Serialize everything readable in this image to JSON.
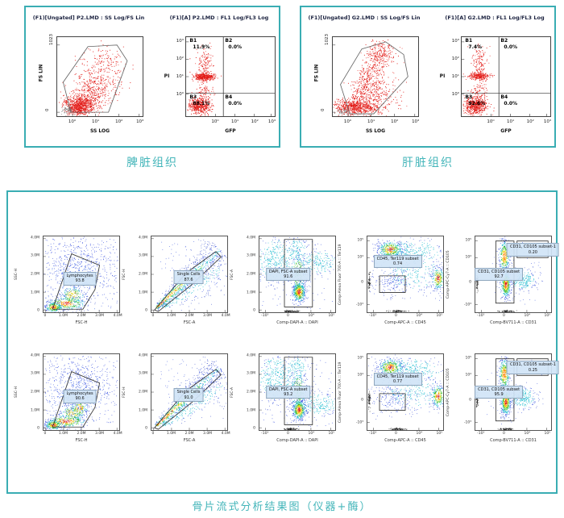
{
  "colors": {
    "accent": "#3aadb3",
    "caption": "#45b6ba"
  },
  "top_panels": [
    {
      "caption": "脾脏组织",
      "scatter_plot": {
        "title": "(F1)[Ungated] P2.LMD : SS Log/FS Lin",
        "xlabel": "SS LOG",
        "ylabel": "FS LIN",
        "xticks": [
          "10⁰",
          "10¹",
          "10²",
          "10³"
        ],
        "yticks": [
          "1023",
          "0"
        ]
      },
      "quadrant_plot": {
        "title": "(F1)[A] P2.LMD : FL1 Log/FL3 Log",
        "xlabel": "GFP",
        "ylabel": "PI",
        "xticks": [
          "10⁰",
          "10¹",
          "10²",
          "10³"
        ],
        "yticks": [
          "10³",
          "10²",
          "10¹",
          "10⁰"
        ],
        "quadrants": [
          {
            "name": "B1",
            "value": "11.9%"
          },
          {
            "name": "B2",
            "value": "0.0%"
          },
          {
            "name": "B3",
            "value": "88.1%"
          },
          {
            "name": "B4",
            "value": "0.0%"
          }
        ]
      }
    },
    {
      "caption": "肝脏组织",
      "scatter_plot": {
        "title": "(F1)[Ungated] G2.LMD : SS Log/FS Lin",
        "xlabel": "SS LOG",
        "ylabel": "FS LIN",
        "xticks": [
          "10⁰",
          "10¹",
          "10²",
          "10³"
        ],
        "yticks": [
          "1023",
          "0"
        ]
      },
      "quadrant_plot": {
        "title": "(F1)[A] G2.LMD : FL1 Log/FL3 Log",
        "xlabel": "GFP",
        "ylabel": "PI",
        "xticks": [
          "10⁰",
          "10¹",
          "10²",
          "10³"
        ],
        "yticks": [
          "10³",
          "10²",
          "10¹",
          "10⁰"
        ],
        "quadrants": [
          {
            "name": "B1",
            "value": "7.4%"
          },
          {
            "name": "B2",
            "value": "0.0%"
          },
          {
            "name": "B3",
            "value": "92.6%"
          },
          {
            "name": "B4",
            "value": "0.0%"
          }
        ]
      }
    }
  ],
  "bottom_panel": {
    "caption": "骨片流式分析结果图（仪器+酶）",
    "columns": [
      {
        "xlabel": "FSC-H",
        "ylabel": "SSC-H",
        "xticks": [
          "0",
          "1.0M",
          "2.0M",
          "3.0M",
          "4.0M"
        ],
        "yticks": [
          "4.0M",
          "3.0M",
          "2.0M",
          "1.0M",
          "0"
        ]
      },
      {
        "xlabel": "FSC-A",
        "ylabel": "FSC-H",
        "xticks": [
          "0",
          "1.0M",
          "2.0M",
          "3.0M",
          "4.0M"
        ],
        "yticks": [
          "4.0M",
          "3.0M",
          "2.0M",
          "1.0M",
          "0"
        ]
      },
      {
        "xlabel": "Comp-DAPI-A :: DAPI",
        "ylabel": "FSC-A",
        "xticks": [
          "-10³",
          "0",
          "10⁴",
          "10⁵"
        ],
        "yticks": [
          "4.0M",
          "3.0M",
          "2.0M",
          "1.0M",
          "0"
        ]
      },
      {
        "xlabel": "Comp-APC-A :: CD45",
        "ylabel": "Comp-Alexa Fluor 700-A :: Ter119",
        "xticks": [
          "-10³",
          "0",
          "10⁴",
          "10⁵"
        ],
        "yticks": [
          "10⁵",
          "10⁴",
          "0",
          "-10³"
        ]
      },
      {
        "xlabel": "Comp-BV711-A :: CD31",
        "ylabel": "Comp-APC-Cy7-A :: CD105",
        "xticks": [
          "-10³",
          "0",
          "10⁴",
          "10⁵"
        ],
        "yticks": [
          "10⁵",
          "10⁴",
          "0",
          "-10³"
        ]
      }
    ],
    "rows": [
      {
        "plots": [
          {
            "gates": [
              {
                "name": "Lymphocytes",
                "value": "93.8"
              }
            ]
          },
          {
            "gates": [
              {
                "name": "Single Cells",
                "value": "87.6"
              }
            ]
          },
          {
            "gates": [
              {
                "name": "DAPI, FSC-A subset",
                "value": "91.6"
              }
            ]
          },
          {
            "gates": [
              {
                "name": "CD45, Ter119 subset",
                "value": "0.74"
              }
            ]
          },
          {
            "gates": [
              {
                "name": "CD31, CD105 subset",
                "value": "92.7"
              },
              {
                "name": "CD31, CD105 subset-1",
                "value": "0.20"
              }
            ]
          }
        ]
      },
      {
        "plots": [
          {
            "gates": [
              {
                "name": "Lymphocytes",
                "value": "90.6"
              }
            ]
          },
          {
            "gates": [
              {
                "name": "Single Cells",
                "value": "91.0"
              }
            ]
          },
          {
            "gates": [
              {
                "name": "DAPI, FSC-A subset",
                "value": "93.2"
              }
            ]
          },
          {
            "gates": [
              {
                "name": "CD45, Ter119 subset",
                "value": "0.77"
              }
            ]
          },
          {
            "gates": [
              {
                "name": "CD31, CD105 subset",
                "value": "95.9"
              },
              {
                "name": "CD31, CD105 subset-1",
                "value": "0.25"
              }
            ]
          }
        ]
      }
    ]
  },
  "chart_data": [
    {
      "panel": "脾脏组织",
      "type": "scatter",
      "title": "(F1)[Ungated] P2.LMD : SS Log/FS Lin",
      "xlabel": "SS LOG",
      "ylabel": "FS LIN",
      "xscale": "log10 10⁰–10³",
      "yrange": [
        0,
        1023
      ],
      "gate": "polygon enclosing main red population"
    },
    {
      "panel": "脾脏组织",
      "type": "scatter",
      "title": "(F1)[A] P2.LMD : FL1 Log/FL3 Log",
      "xlabel": "GFP",
      "ylabel": "PI",
      "xscale": "log10 10⁰–10³",
      "yscale": "log10 10⁰–10³",
      "quadrants": {
        "B1": 11.9,
        "B2": 0.0,
        "B3": 88.1,
        "B4": 0.0
      }
    },
    {
      "panel": "肝脏组织",
      "type": "scatter",
      "title": "(F1)[Ungated] G2.LMD : SS Log/FS Lin",
      "xlabel": "SS LOG",
      "ylabel": "FS LIN",
      "xscale": "log10 10⁰–10³",
      "yrange": [
        0,
        1023
      ],
      "gate": "polygon enclosing main red population"
    },
    {
      "panel": "肝脏组织",
      "type": "scatter",
      "title": "(F1)[A] G2.LMD : FL1 Log/FL3 Log",
      "xlabel": "GFP",
      "ylabel": "PI",
      "xscale": "log10 10⁰–10³",
      "yscale": "log10 10⁰–10³",
      "quadrants": {
        "B1": 7.4,
        "B2": 0.0,
        "B3": 92.6,
        "B4": 0.0
      }
    },
    {
      "panel": "骨片流式分析结果图（仪器+酶）",
      "row": 1,
      "col": 1,
      "type": "density-scatter",
      "xlabel": "FSC-H",
      "ylabel": "SSC-H",
      "axis_range": "0–4.0M",
      "gates": {
        "Lymphocytes": 93.8
      }
    },
    {
      "panel": "骨片流式分析结果图（仪器+酶）",
      "row": 1,
      "col": 2,
      "type": "density-scatter",
      "xlabel": "FSC-A",
      "ylabel": "FSC-H",
      "axis_range": "0–4.0M",
      "gates": {
        "Single Cells": 87.6
      }
    },
    {
      "panel": "骨片流式分析结果图（仪器+酶）",
      "row": 1,
      "col": 3,
      "type": "density-scatter",
      "xlabel": "Comp-DAPI-A :: DAPI",
      "ylabel": "FSC-A",
      "gates": {
        "DAPI, FSC-A subset": 91.6
      }
    },
    {
      "panel": "骨片流式分析结果图（仪器+酶）",
      "row": 1,
      "col": 4,
      "type": "density-scatter",
      "xlabel": "Comp-APC-A :: CD45",
      "ylabel": "Comp-Alexa Fluor 700-A :: Ter119",
      "gates": {
        "CD45, Ter119 subset": 0.74
      }
    },
    {
      "panel": "骨片流式分析结果图（仪器+酶）",
      "row": 1,
      "col": 5,
      "type": "density-scatter",
      "xlabel": "Comp-BV711-A :: CD31",
      "ylabel": "Comp-APC-Cy7-A :: CD105",
      "gates": {
        "CD31, CD105 subset": 92.7,
        "CD31, CD105 subset-1": 0.2
      }
    },
    {
      "panel": "骨片流式分析结果图（仪器+酶）",
      "row": 2,
      "col": 1,
      "type": "density-scatter",
      "xlabel": "FSC-H",
      "ylabel": "SSC-H",
      "axis_range": "0–4.0M",
      "gates": {
        "Lymphocytes": 90.6
      }
    },
    {
      "panel": "骨片流式分析结果图（仪器+酶）",
      "row": 2,
      "col": 2,
      "type": "density-scatter",
      "xlabel": "FSC-A",
      "ylabel": "FSC-H",
      "axis_range": "0–4.0M",
      "gates": {
        "Single Cells": 91.0
      }
    },
    {
      "panel": "骨片流式分析结果图（仪器+酶）",
      "row": 2,
      "col": 3,
      "type": "density-scatter",
      "xlabel": "Comp-DAPI-A :: DAPI",
      "ylabel": "FSC-A",
      "gates": {
        "DAPI, FSC-A subset": 93.2
      }
    },
    {
      "panel": "骨片流式分析结果图（仪器+酶）",
      "row": 2,
      "col": 4,
      "type": "density-scatter",
      "xlabel": "Comp-APC-A :: CD45",
      "ylabel": "Comp-Alexa Fluor 700-A :: Ter119",
      "gates": {
        "CD45, Ter119 subset": 0.77
      }
    },
    {
      "panel": "骨片流式分析结果图（仪器+酶）",
      "row": 2,
      "col": 5,
      "type": "density-scatter",
      "xlabel": "Comp-BV711-A :: CD31",
      "ylabel": "Comp-APC-Cy7-A :: CD105",
      "gates": {
        "CD31, CD105 subset": 95.9,
        "CD31, CD105 subset-1": 0.25
      }
    }
  ]
}
